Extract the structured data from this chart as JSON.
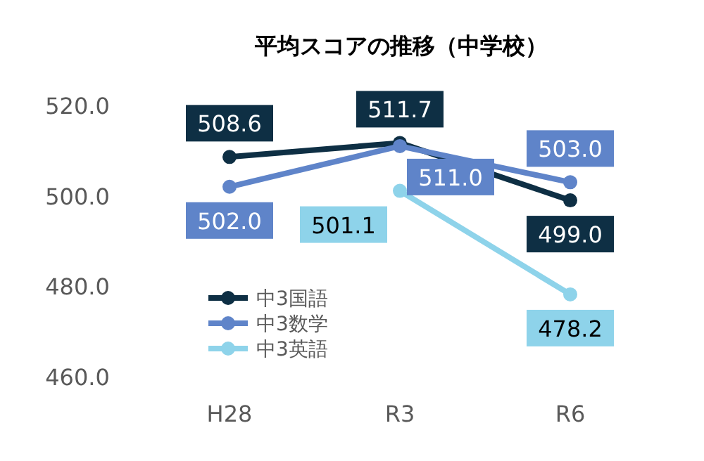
{
  "chart_data": {
    "type": "line",
    "title": "平均スコアの推移（中学校）",
    "categories": [
      "H28",
      "R3",
      "R6"
    ],
    "ylim": [
      460,
      520
    ],
    "yticks": [
      {
        "value": 460,
        "label": "460.0"
      },
      {
        "value": 480,
        "label": "480.0"
      },
      {
        "value": 500,
        "label": "500.0"
      },
      {
        "value": 520,
        "label": "520.0"
      }
    ],
    "grid": false,
    "legend": "bottom left",
    "marker": "circle",
    "line_style": "solid",
    "series": [
      {
        "name": "中3国語",
        "color": "#0e2f44",
        "values": [
          508.6,
          511.7,
          499.0
        ],
        "value_labels": [
          "508.6",
          "511.7",
          "499.0"
        ]
      },
      {
        "name": "中3数学",
        "color": "#5f84c9",
        "values": [
          502.0,
          511.0,
          503.0
        ],
        "value_labels": [
          "502.0",
          "511.0",
          "503.0"
        ]
      },
      {
        "name": "中3英語",
        "color": "#8ed3ea",
        "values": [
          null,
          501.1,
          478.2
        ],
        "value_labels": [
          null,
          "501.1",
          "478.2"
        ]
      }
    ]
  }
}
